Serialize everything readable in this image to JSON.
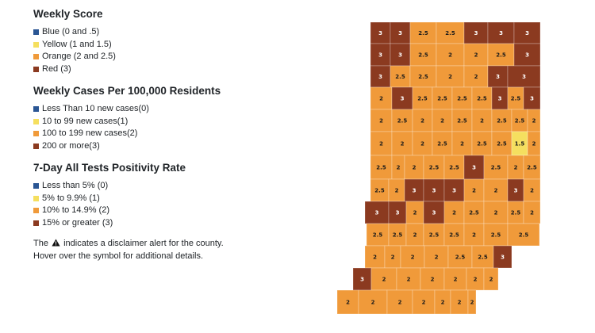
{
  "legend": {
    "sections": [
      {
        "title": "Weekly Score",
        "items": [
          {
            "label": "Blue (0 and .5)",
            "color": "#2b5694"
          },
          {
            "label": "Yellow (1 and 1.5)",
            "color": "#f5df5f"
          },
          {
            "label": "Orange (2 and 2.5)",
            "color": "#f09a3a"
          },
          {
            "label": "Red (3)",
            "color": "#8b3a20"
          }
        ]
      },
      {
        "title": "Weekly Cases Per 100,000 Residents",
        "items": [
          {
            "label": "Less Than 10 new cases(0)",
            "color": "#2b5694"
          },
          {
            "label": "10 to 99 new cases(1)",
            "color": "#f5df5f"
          },
          {
            "label": "100 to 199 new cases(2)",
            "color": "#f09a3a"
          },
          {
            "label": "200 or more(3)",
            "color": "#8b3a20"
          }
        ]
      },
      {
        "title": "7-Day All Tests Positivity Rate",
        "items": [
          {
            "label": "Less than 5% (0)",
            "color": "#2b5694"
          },
          {
            "label": "5% to 9.9% (1)",
            "color": "#f5df5f"
          },
          {
            "label": "10% to 14.9% (2)",
            "color": "#f09a3a"
          },
          {
            "label": "15% or greater (3)",
            "color": "#8b3a20"
          }
        ]
      }
    ],
    "note_before": "The",
    "note_icon": "warning-triangle-icon",
    "note_after": "indicates a disclaimer alert for the county.",
    "note_line2": "Hover over the symbol for additional details."
  },
  "map": {
    "colors": {
      "3": "#8b3a20",
      "2.5": "#f09a3a",
      "2": "#f09a3a",
      "1.5": "#f5df5f"
    },
    "scores": [
      "3",
      "3",
      "2.5",
      "2.5",
      "3",
      "3",
      "3",
      "3",
      "3",
      "2.5",
      "2",
      "2",
      "2.5",
      "3",
      "3",
      "2.5",
      "2.5",
      "2",
      "2",
      "3",
      "3",
      "2",
      "3",
      "2.5",
      "2.5",
      "2.5",
      "2.5",
      "3",
      "2.5",
      "3",
      "2",
      "2.5",
      "2",
      "2",
      "2.5",
      "2",
      "2.5",
      "2.5",
      "2",
      "2",
      "2",
      "2",
      "2.5",
      "2",
      "2.5",
      "2.5",
      "1.5",
      "2",
      "2.5",
      "2",
      "2",
      "2.5",
      "2.5",
      "3",
      "2.5",
      "2",
      "2.5",
      "2.5",
      "2",
      "3",
      "3",
      "3",
      "2",
      "2",
      "3",
      "2",
      "3",
      "3",
      "2",
      "3",
      "2",
      "2.5",
      "2",
      "2.5",
      "2",
      "2.5",
      "2.5",
      "2",
      "2.5",
      "2.5",
      "2",
      "2.5",
      "2.5",
      "2",
      "2",
      "2",
      "2",
      "2.5",
      "2.5",
      "3",
      "3",
      "2",
      "2"
    ]
  }
}
